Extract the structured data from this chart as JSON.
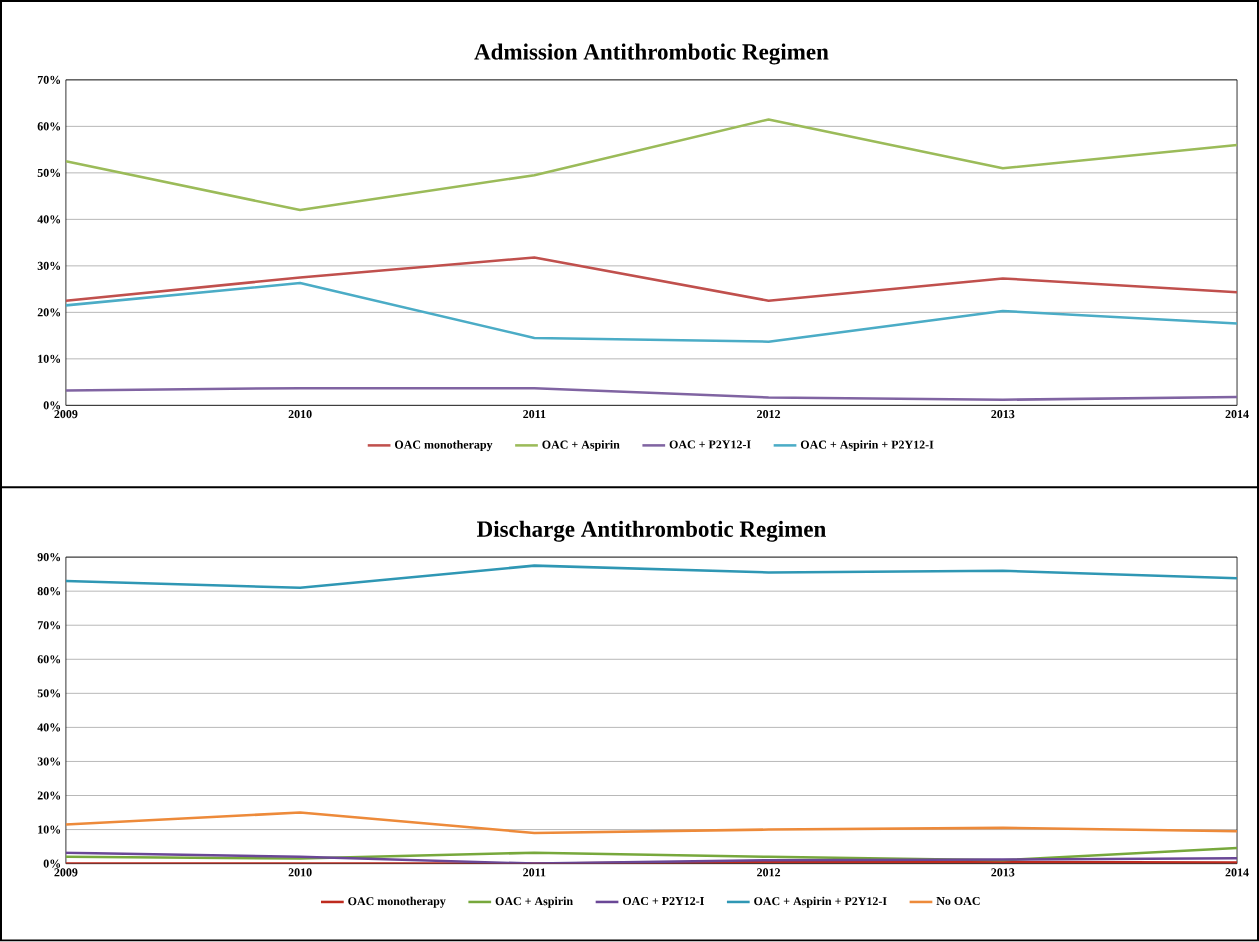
{
  "chart_data": [
    {
      "type": "line",
      "title": "Admission Antithrombotic Regimen",
      "categories": [
        "2009",
        "2010",
        "2011",
        "2012",
        "2013",
        "2014"
      ],
      "ylim": [
        0,
        70
      ],
      "yticks": [
        {
          "value": 0,
          "label": "0%"
        },
        {
          "value": 10,
          "label": "10%"
        },
        {
          "value": 20,
          "label": "20%"
        },
        {
          "value": 30,
          "label": "30%"
        },
        {
          "value": 40,
          "label": "40%"
        },
        {
          "value": 50,
          "label": "50%"
        },
        {
          "value": 60,
          "label": "60%"
        },
        {
          "value": 70,
          "label": "70%"
        }
      ],
      "grid": "y",
      "legend": "bottom",
      "series": [
        {
          "name": "OAC monotherapy",
          "color": "#c0504d",
          "values": [
            22.5,
            27.5,
            31.8,
            22.5,
            27.3,
            24.3
          ]
        },
        {
          "name": "OAC + Aspirin",
          "color": "#9bbb59",
          "values": [
            52.5,
            42,
            49.5,
            61.5,
            51,
            56
          ]
        },
        {
          "name": "OAC + P2Y12-I",
          "color": "#8064a2",
          "values": [
            3.2,
            3.7,
            3.7,
            1.7,
            1.2,
            1.8
          ]
        },
        {
          "name": "OAC + Aspirin + P2Y12-I",
          "color": "#4bacc6",
          "values": [
            21.5,
            26.3,
            14.5,
            13.7,
            20.3,
            17.6
          ]
        }
      ]
    },
    {
      "type": "line",
      "title": "Discharge Antithrombotic Regimen",
      "categories": [
        "2009",
        "2010",
        "2011",
        "2012",
        "2013",
        "2014"
      ],
      "ylim": [
        0,
        90
      ],
      "yticks": [
        {
          "value": 0,
          "label": "0%"
        },
        {
          "value": 10,
          "label": "10%"
        },
        {
          "value": 20,
          "label": "20%"
        },
        {
          "value": 30,
          "label": "30%"
        },
        {
          "value": 40,
          "label": "40%"
        },
        {
          "value": 50,
          "label": "50%"
        },
        {
          "value": 60,
          "label": "60%"
        },
        {
          "value": 70,
          "label": "70%"
        },
        {
          "value": 80,
          "label": "80%"
        },
        {
          "value": 90,
          "label": "90%"
        }
      ],
      "grid": "y",
      "legend": "bottom",
      "series": [
        {
          "name": "OAC monotherapy",
          "color": "#be2a1e",
          "values": [
            0,
            0,
            0,
            0.5,
            0.5,
            0.3
          ]
        },
        {
          "name": "OAC + Aspirin",
          "color": "#77a83c",
          "values": [
            2,
            1.5,
            3.2,
            2,
            1,
            4.6
          ]
        },
        {
          "name": "OAC + P2Y12-I",
          "color": "#6a4796",
          "values": [
            3.2,
            2,
            0,
            1,
            1.2,
            1.6
          ]
        },
        {
          "name": "OAC + Aspirin + P2Y12-I",
          "color": "#2f97b4",
          "values": [
            83,
            81,
            87.5,
            85.5,
            86,
            83.8
          ]
        },
        {
          "name": "No OAC",
          "color": "#ed8a3a",
          "values": [
            11.5,
            15,
            9,
            10,
            10.5,
            9.5
          ]
        }
      ]
    }
  ]
}
